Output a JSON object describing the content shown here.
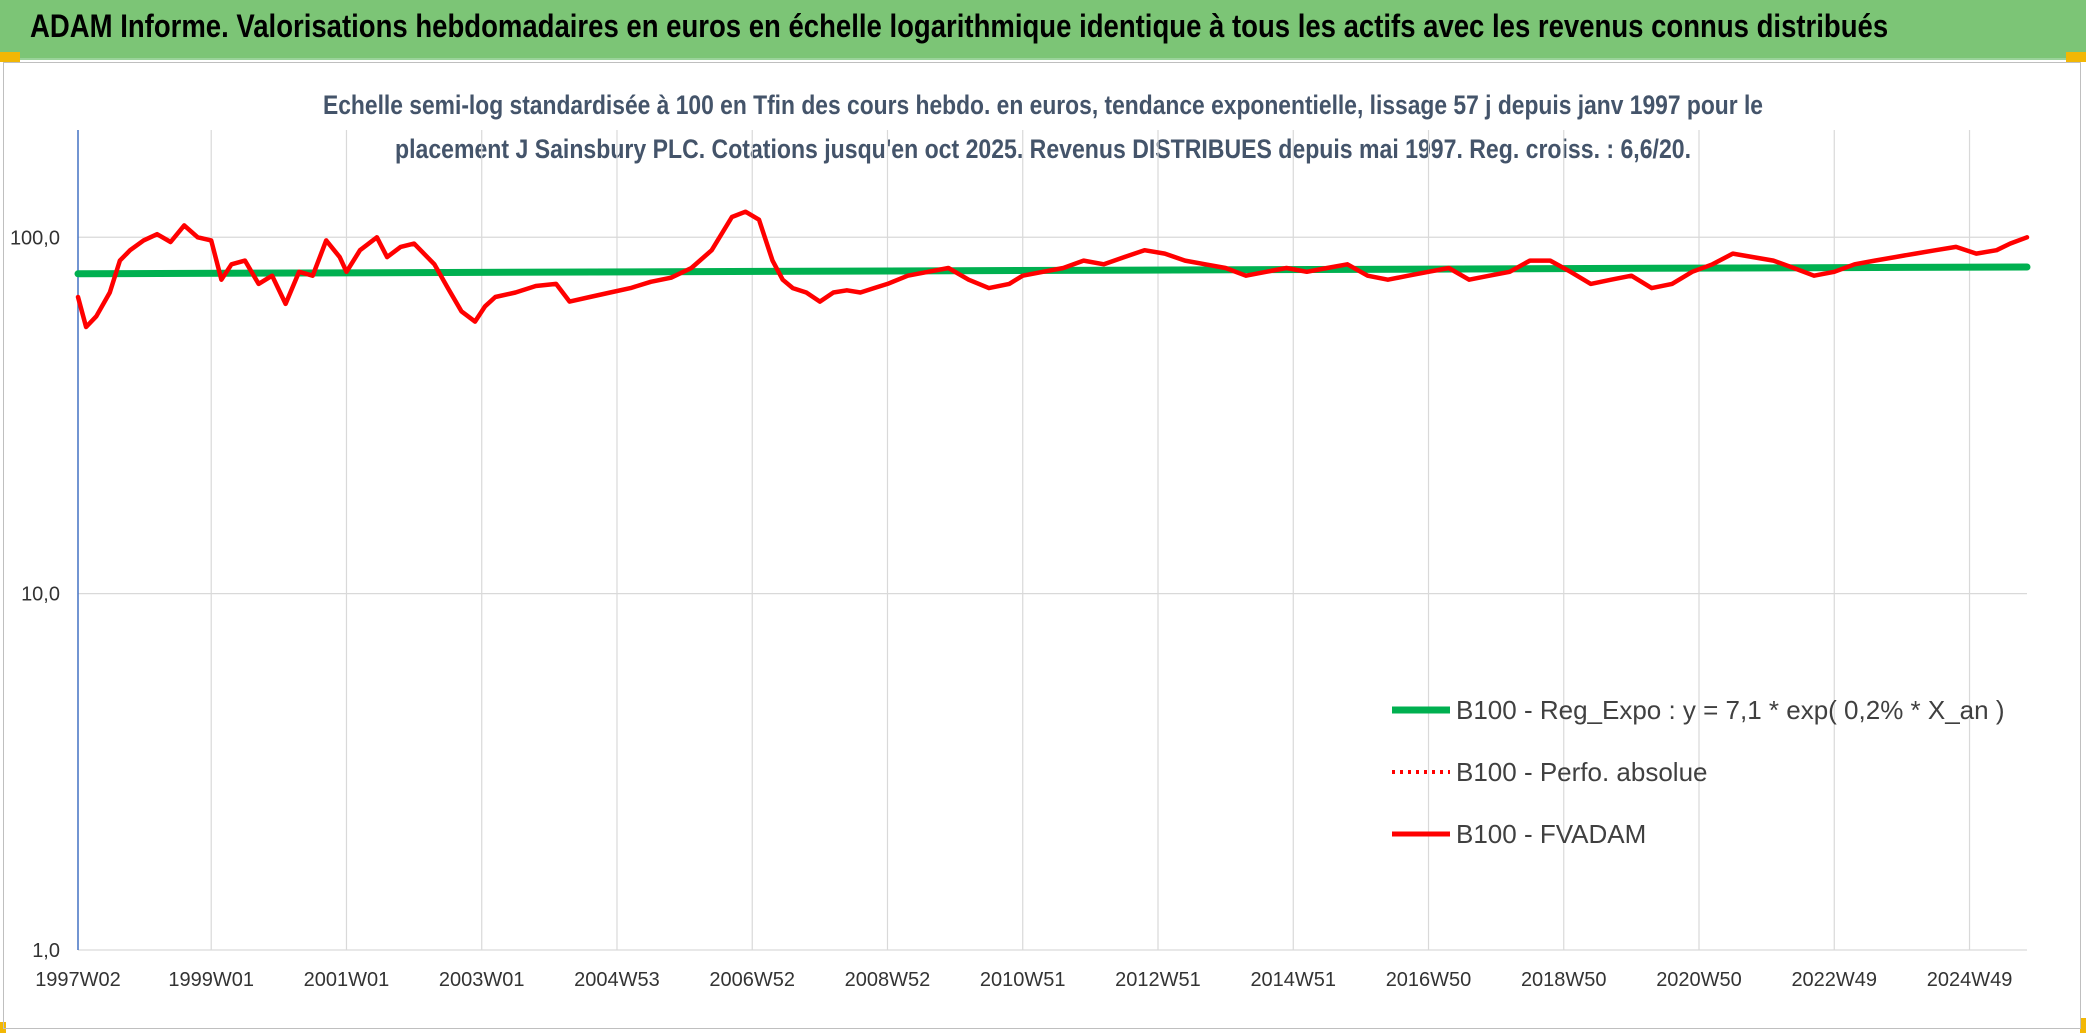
{
  "header": {
    "title": "ADAM Informe. Valorisations hebdomadaires en euros en échelle logarithmique identique à tous les actifs avec les revenus connus distribués"
  },
  "chart_data": {
    "type": "line",
    "title_lines": [
      "Echelle semi-log standardisée à 100 en Tfin des cours hebdo. en euros, tendance exponentielle, lissage 57 j depuis janv 1997 pour le",
      "placement J Sainsbury PLC. Cotations jusqu'en oct 2025. Revenus DISTRIBUES depuis mai 1997. Reg. croiss. : 6,6/20."
    ],
    "y_scale": "log",
    "ylim": [
      1,
      200
    ],
    "xlim": [
      1997.03,
      2025.85
    ],
    "grid": true,
    "y_ticks": [
      {
        "value": 1,
        "label": "1,0"
      },
      {
        "value": 10,
        "label": "10,0"
      },
      {
        "value": 100,
        "label": "100,0"
      }
    ],
    "x_ticks": [
      {
        "value": 1997.03,
        "label": "1997W02"
      },
      {
        "value": 1999.0,
        "label": "1999W01"
      },
      {
        "value": 2001.0,
        "label": "2001W01"
      },
      {
        "value": 2003.0,
        "label": "2003W01"
      },
      {
        "value": 2005.0,
        "label": "2004W53"
      },
      {
        "value": 2007.0,
        "label": "2006W52"
      },
      {
        "value": 2009.0,
        "label": "2008W52"
      },
      {
        "value": 2011.0,
        "label": "2010W51"
      },
      {
        "value": 2013.0,
        "label": "2012W51"
      },
      {
        "value": 2015.0,
        "label": "2014W51"
      },
      {
        "value": 2017.0,
        "label": "2016W50"
      },
      {
        "value": 2019.0,
        "label": "2018W50"
      },
      {
        "value": 2021.0,
        "label": "2020W50"
      },
      {
        "value": 2023.0,
        "label": "2022W49"
      },
      {
        "value": 2025.0,
        "label": "2024W49"
      }
    ],
    "legend": {
      "placement": "bottom-right",
      "entries": [
        {
          "name": "B100 - Reg_Expo : y = 7,1 * exp( 0,2% *  X_an )",
          "color": "#00b050",
          "style": "solid"
        },
        {
          "name": "B100 - Perfo. absolue",
          "color": "#ff0000",
          "style": "dotted"
        },
        {
          "name": "B100 - FVADAM",
          "color": "#ff0000",
          "style": "solid"
        }
      ]
    },
    "series": [
      {
        "name": "B100 - Reg_Expo : y = 7,1 * exp( 0,2% *  X_an )",
        "color": "#00b050",
        "x": [
          1997.03,
          2025.85
        ],
        "y": [
          79,
          82.5
        ]
      },
      {
        "name": "B100 - FVADAM",
        "color": "#ff0000",
        "x": [
          1997.03,
          1997.15,
          1997.3,
          1997.5,
          1997.65,
          1997.8,
          1998.0,
          1998.2,
          1998.4,
          1998.6,
          1998.8,
          1999.0,
          1999.15,
          1999.3,
          1999.5,
          1999.7,
          1999.9,
          2000.1,
          2000.3,
          2000.5,
          2000.7,
          2000.9,
          2001.0,
          2001.2,
          2001.45,
          2001.6,
          2001.8,
          2002.0,
          2002.3,
          2002.5,
          2002.7,
          2002.9,
          2003.05,
          2003.2,
          2003.5,
          2003.8,
          2004.1,
          2004.3,
          2004.6,
          2004.9,
          2005.2,
          2005.5,
          2005.8,
          2006.1,
          2006.4,
          2006.7,
          2006.9,
          2007.1,
          2007.3,
          2007.45,
          2007.6,
          2007.8,
          2008.0,
          2008.2,
          2008.4,
          2008.6,
          2008.8,
          2009.0,
          2009.3,
          2009.6,
          2009.9,
          2010.2,
          2010.5,
          2010.8,
          2011.0,
          2011.3,
          2011.6,
          2011.9,
          2012.2,
          2012.5,
          2012.8,
          2013.1,
          2013.4,
          2013.7,
          2014.0,
          2014.3,
          2014.6,
          2014.9,
          2015.2,
          2015.5,
          2015.8,
          2016.1,
          2016.4,
          2016.7,
          2017.0,
          2017.3,
          2017.6,
          2017.9,
          2018.2,
          2018.5,
          2018.8,
          2019.1,
          2019.4,
          2019.7,
          2020.0,
          2020.3,
          2020.6,
          2020.9,
          2021.2,
          2021.5,
          2021.8,
          2022.1,
          2022.4,
          2022.7,
          2023.0,
          2023.3,
          2023.6,
          2023.9,
          2024.2,
          2024.5,
          2024.8,
          2025.1,
          2025.4,
          2025.6,
          2025.85
        ],
        "y": [
          68,
          56,
          60,
          70,
          86,
          92,
          98,
          102,
          97,
          108,
          100,
          98,
          76,
          84,
          86,
          74,
          78,
          65,
          80,
          78,
          98,
          88,
          80,
          92,
          100,
          88,
          94,
          96,
          84,
          72,
          62,
          58,
          64,
          68,
          70,
          73,
          74,
          66,
          68,
          70,
          72,
          75,
          77,
          82,
          92,
          114,
          118,
          112,
          86,
          76,
          72,
          70,
          66,
          70,
          71,
          70,
          72,
          74,
          78,
          80,
          82,
          76,
          72,
          74,
          78,
          80,
          82,
          86,
          84,
          88,
          92,
          90,
          86,
          84,
          82,
          78,
          80,
          82,
          80,
          82,
          84,
          78,
          76,
          78,
          80,
          82,
          76,
          78,
          80,
          86,
          86,
          80,
          74,
          76,
          78,
          72,
          74,
          80,
          84,
          90,
          88,
          86,
          82,
          78,
          80,
          84,
          86,
          88,
          90,
          92,
          94,
          90,
          92,
          96,
          100
        ]
      }
    ]
  }
}
